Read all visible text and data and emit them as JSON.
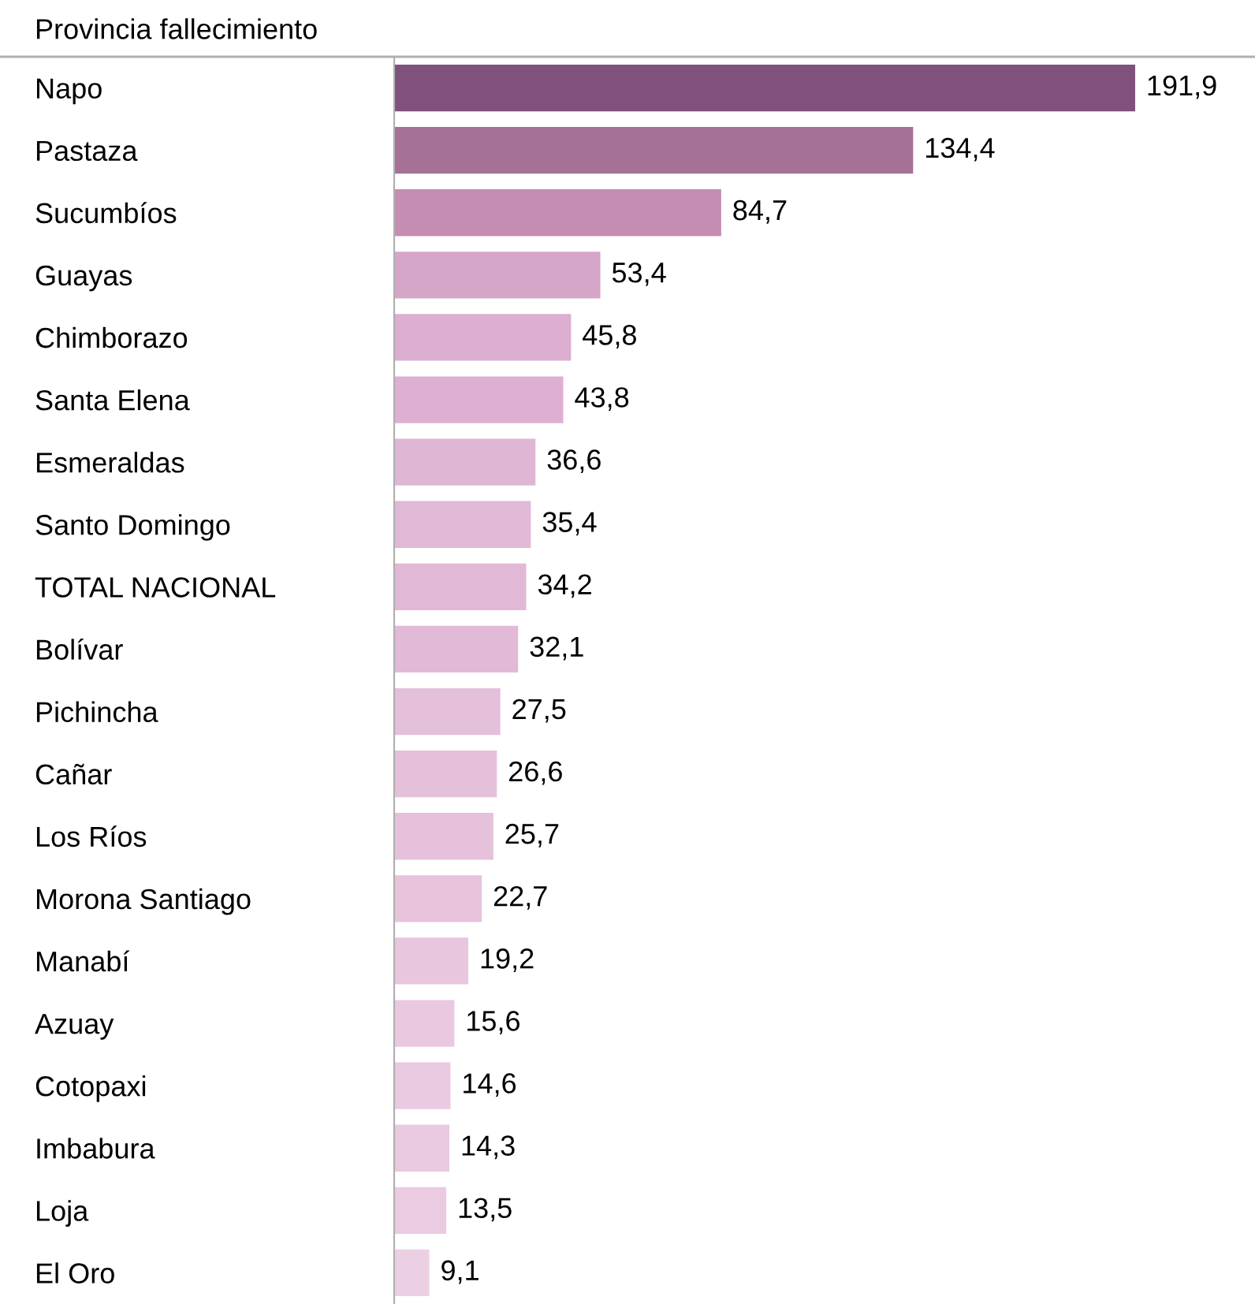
{
  "chart_data": {
    "type": "bar",
    "orientation": "horizontal",
    "title": "Provincia fallecimiento",
    "categories": [
      "Napo",
      "Pastaza",
      "Sucumbíos",
      "Guayas",
      "Chimborazo",
      "Santa Elena",
      "Esmeraldas",
      "Santo Domingo",
      "TOTAL NACIONAL",
      "Bolívar",
      "Pichincha",
      "Cañar",
      "Los Ríos",
      "Morona Santiago",
      "Manabí",
      "Azuay",
      "Cotopaxi",
      "Imbabura",
      "Loja",
      "El Oro"
    ],
    "values": [
      191.9,
      134.4,
      84.7,
      53.4,
      45.8,
      43.8,
      36.6,
      35.4,
      34.2,
      32.1,
      27.5,
      26.6,
      25.7,
      22.7,
      19.2,
      15.6,
      14.6,
      14.3,
      13.5,
      9.1
    ],
    "value_labels": [
      "191,9",
      "134,4",
      "84,7",
      "53,4",
      "45,8",
      "43,8",
      "36,6",
      "35,4",
      "34,2",
      "32,1",
      "27,5",
      "26,6",
      "25,7",
      "22,7",
      "19,2",
      "15,6",
      "14,6",
      "14,3",
      "13,5",
      "9,1"
    ],
    "colors": [
      "#7f517c",
      "#a67097",
      "#c68db3",
      "#d6a6c8",
      "#dcaed0",
      "#ddb0d1",
      "#e0b6d5",
      "#e1b8d6",
      "#e1b9d6",
      "#e2bad7",
      "#e4bfda",
      "#e5c0db",
      "#e5c1db",
      "#e7c3dc",
      "#e8c6de",
      "#eac9e0",
      "#eacae1",
      "#eacae1",
      "#ebcbe2",
      "#edcfe4"
    ],
    "grid": false,
    "legend": false,
    "tick_labels": "y"
  }
}
